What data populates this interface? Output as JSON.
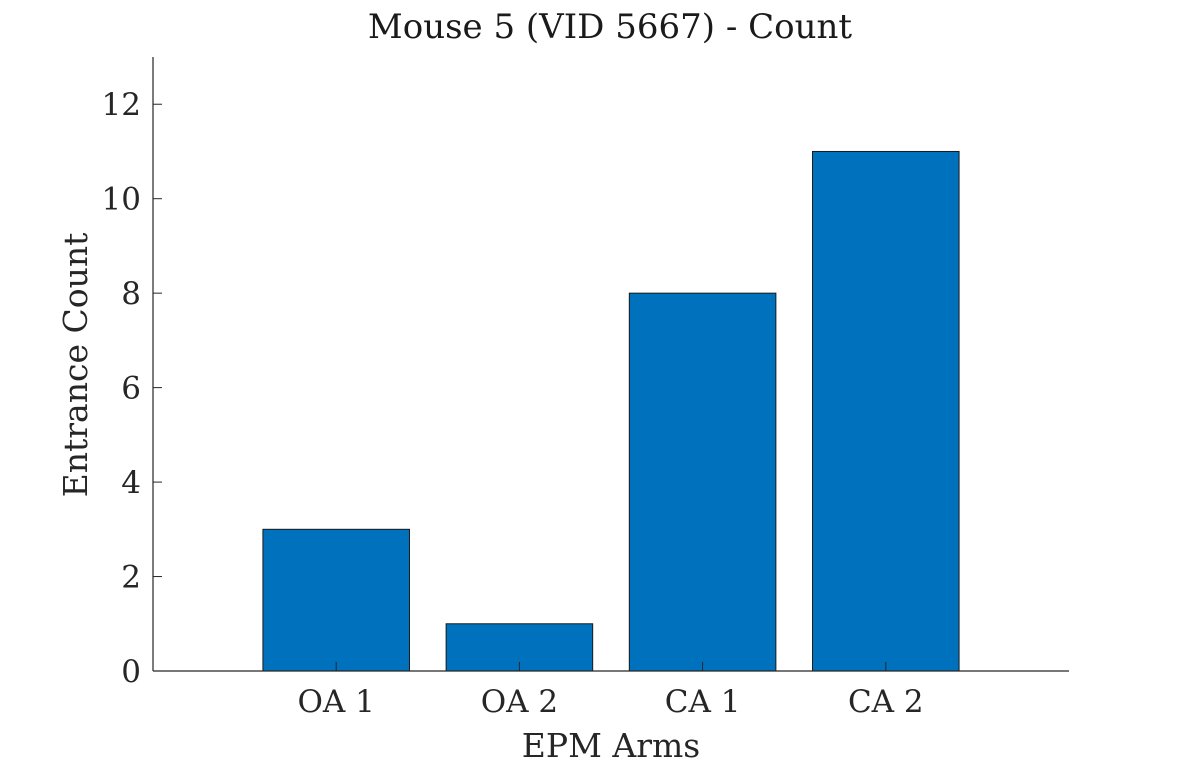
{
  "chart_data": {
    "type": "bar",
    "title": "Mouse 5 (VID 5667) - Count",
    "xlabel": "EPM Arms",
    "ylabel": "Entrance Count",
    "categories": [
      "OA 1",
      "OA 2",
      "CA 1",
      "CA 2"
    ],
    "values": [
      3,
      1,
      8,
      11
    ],
    "ylim": [
      0,
      13
    ],
    "yticks": [
      0,
      2,
      4,
      6,
      8,
      10,
      12
    ],
    "xlim": [
      0,
      5
    ],
    "grid": false,
    "bar_color": "#0072BD"
  }
}
